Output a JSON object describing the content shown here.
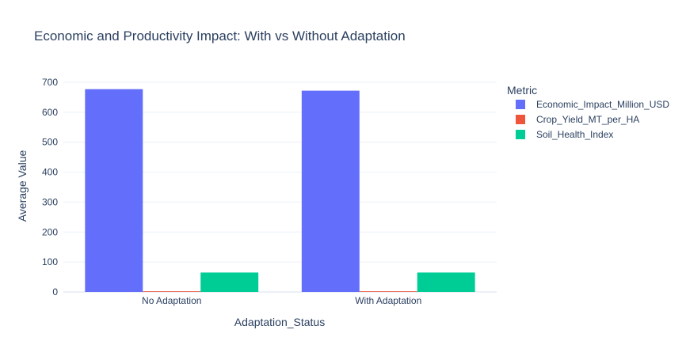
{
  "chart_data": {
    "type": "bar",
    "title": "Economic and Productivity Impact: With vs Without Adaptation",
    "xlabel": "Adaptation_Status",
    "ylabel": "Average Value",
    "categories": [
      "No Adaptation",
      "With Adaptation"
    ],
    "series": [
      {
        "name": "Economic_Impact_Million_USD",
        "values": [
          677,
          672
        ],
        "color": "#636efa"
      },
      {
        "name": "Crop_Yield_MT_per_HA",
        "values": [
          2.2,
          2.2
        ],
        "color": "#ef553b"
      },
      {
        "name": "Soil_Health_Index",
        "values": [
          64.9,
          64.9
        ],
        "color": "#00cc96"
      }
    ],
    "ylim": [
      0,
      700
    ],
    "yticks": [
      0,
      100,
      200,
      300,
      400,
      500,
      600,
      700
    ],
    "legend_title": "Metric",
    "legend_position": "top-right",
    "grid": true,
    "barmode": "group"
  }
}
